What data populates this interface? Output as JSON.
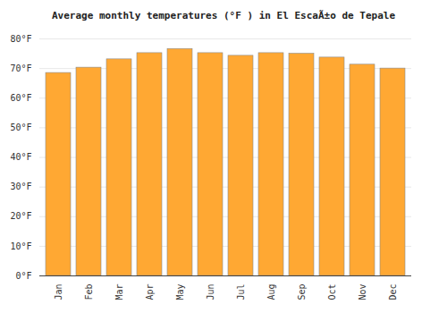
{
  "chart_data": {
    "type": "bar",
    "title": "Average monthly temperatures (°F ) in El EscaÃ±o de Tepale",
    "categories": [
      "Jan",
      "Feb",
      "Mar",
      "Apr",
      "May",
      "Jun",
      "Jul",
      "Aug",
      "Sep",
      "Oct",
      "Nov",
      "Dec"
    ],
    "values": [
      68.5,
      70.3,
      73.1,
      75.2,
      76.6,
      75.2,
      74.3,
      75.2,
      75.0,
      73.7,
      71.3,
      70.0
    ],
    "color": "#ffa833",
    "ylim": [
      0,
      80
    ],
    "yticks": [
      {
        "value": 0,
        "label": "0°F"
      },
      {
        "value": 10,
        "label": "10°F"
      },
      {
        "value": 20,
        "label": "20°F"
      },
      {
        "value": 30,
        "label": "30°F"
      },
      {
        "value": 40,
        "label": "40°F"
      },
      {
        "value": 50,
        "label": "50°F"
      },
      {
        "value": 60,
        "label": "60°F"
      },
      {
        "value": 70,
        "label": "70°F"
      },
      {
        "value": 80,
        "label": "80°F"
      }
    ],
    "grid": true
  }
}
